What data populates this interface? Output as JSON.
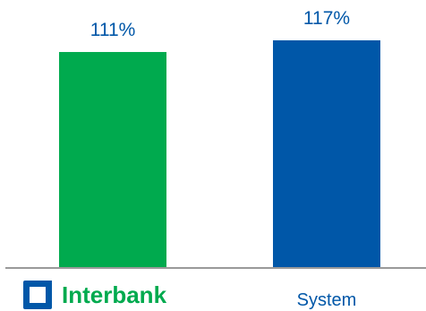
{
  "chart_data": {
    "type": "bar",
    "categories": [
      "Interbank",
      "System"
    ],
    "values": [
      111,
      117
    ],
    "value_labels": [
      "111%",
      "117%"
    ],
    "ylim": [
      0,
      117
    ],
    "grid": false,
    "colors": {
      "bars": [
        "#00aa4e",
        "#0057a8"
      ],
      "labels": "#0057a8",
      "axis": "#9a9a9a",
      "brand_text": "#00aa4e",
      "brand_icon": "#0057a8"
    }
  },
  "brand": {
    "name": "Interbank",
    "icon": "interbank-logo-icon"
  },
  "labels": {
    "system": "System"
  }
}
